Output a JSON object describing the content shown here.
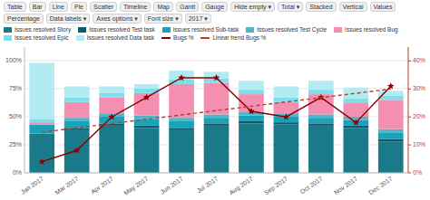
{
  "chart_data": {
    "type": "bar",
    "stacked": true,
    "grid": true,
    "legend": "top",
    "annotations": [
      "Table",
      "Bar",
      "Line",
      "Pie",
      "Scatter",
      "Timeline",
      "Map",
      "Gantt",
      "Gauge",
      "Hide empty ▾",
      "Total ▾",
      "Stacked",
      "Vertical",
      "Values",
      "Percentage",
      "Data labels ▾",
      "Axes options ▾",
      "Font size ▾",
      "2017 ▾"
    ],
    "categories": [
      "Jan 2017",
      "Mar 2017",
      "Apr 2017",
      "May 2017",
      "Jun 2017",
      "Jul 2017",
      "Aug 2017",
      "Sep 2017",
      "Oct 2017",
      "Nov 2017",
      "Dec 2017"
    ],
    "series": [
      {
        "name": "Issues resolved Story",
        "color": "#1a7a8a",
        "values": [
          35,
          38,
          42,
          40,
          38,
          42,
          44,
          43,
          42,
          40,
          28
        ]
      },
      {
        "name": "Issues resolved Test task",
        "color": "#0d5c6e",
        "values": [
          0,
          2,
          2,
          2,
          2,
          2,
          2,
          2,
          2,
          2,
          2
        ]
      },
      {
        "name": "Issues resolved Sub-task",
        "color": "#1aa3b8",
        "values": [
          8,
          6,
          6,
          6,
          6,
          5,
          5,
          5,
          5,
          5,
          6
        ]
      },
      {
        "name": "Issues resolved Test Cycle",
        "color": "#4db6c8",
        "values": [
          0,
          3,
          3,
          3,
          3,
          3,
          3,
          3,
          3,
          3,
          3
        ]
      },
      {
        "name": "Issues resolved Bug",
        "color": "#f48fb1",
        "values": [
          2,
          14,
          14,
          20,
          30,
          28,
          16,
          10,
          18,
          12,
          26
        ]
      },
      {
        "name": "Issues resolved Epic",
        "color": "#80deea",
        "values": [
          3,
          4,
          4,
          4,
          4,
          4,
          4,
          4,
          4,
          4,
          4
        ]
      },
      {
        "name": "Issues resolved Data task",
        "color": "#b2ebf2",
        "values": [
          50,
          10,
          6,
          4,
          8,
          6,
          8,
          10,
          8,
          10,
          4
        ]
      },
      {
        "name": "Bugs %",
        "type": "line",
        "axis": "y2",
        "color": "#8b0000",
        "marker": "star",
        "values": [
          4,
          8,
          20,
          27,
          34,
          34,
          22,
          20,
          27,
          18,
          31
        ]
      },
      {
        "name": "Linear trend Bugs %",
        "type": "line",
        "axis": "y2",
        "color": "#c0392b",
        "line_style": "dashed",
        "values": [
          14.545455,
          16.090909,
          17.636364,
          19.181818,
          20.727273,
          22.272727,
          23.818182,
          25.363636,
          26.909091,
          28.454545,
          30.0
        ]
      }
    ],
    "ylim": [
      0,
      112
    ],
    "yticks": [
      {
        "value": 0,
        "label": "0%"
      },
      {
        "value": 25,
        "label": "25%"
      },
      {
        "value": 50,
        "label": "50%"
      },
      {
        "value": 75,
        "label": "75%"
      },
      {
        "value": 100,
        "label": "100%"
      }
    ],
    "y2lim": [
      0,
      45
    ],
    "y2ticks": [
      {
        "value": 0,
        "label": "0%"
      },
      {
        "value": 10,
        "label": "10%"
      },
      {
        "value": 20,
        "label": "20%"
      },
      {
        "value": 30,
        "label": "30%"
      },
      {
        "value": 40,
        "label": "40%"
      }
    ]
  }
}
